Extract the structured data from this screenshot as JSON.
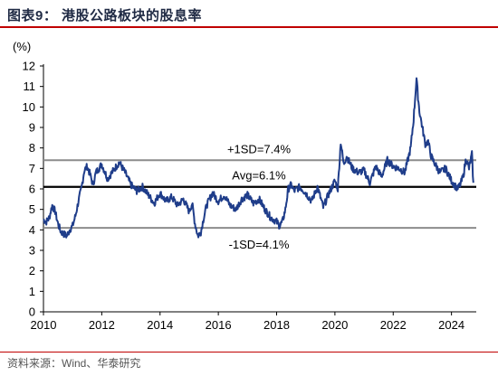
{
  "header": {
    "title": "图表9：  港股公路板块的股息率"
  },
  "footer": {
    "source": "资料来源：Wind、华泰研究"
  },
  "colors": {
    "series": "#1f3d8a",
    "avg_line": "#000000",
    "sd_line": "#8c8c8c",
    "rule": "#c00000"
  },
  "chart_data": {
    "type": "line",
    "title": "港股公路板块的股息率",
    "unit_label": "(%)",
    "xlim": [
      2010,
      2024.85
    ],
    "ylim": [
      0,
      12
    ],
    "x_ticks": [
      2010,
      2012,
      2014,
      2016,
      2018,
      2020,
      2022,
      2024
    ],
    "y_ticks": [
      0,
      1,
      2,
      3,
      4,
      5,
      6,
      7,
      8,
      9,
      10,
      11,
      12
    ],
    "grid": false,
    "reference_lines": [
      {
        "label": "+1SD=7.4%",
        "value": 7.4,
        "style": "sd"
      },
      {
        "label": "Avg=6.1%",
        "value": 6.1,
        "style": "avg"
      },
      {
        "label": "-1SD=4.1%",
        "value": 4.1,
        "style": "sd"
      }
    ],
    "series": [
      {
        "x": [
          2010.0,
          2010.1,
          2010.2,
          2010.3,
          2010.4,
          2010.5,
          2010.6,
          2010.7,
          2010.8,
          2010.9,
          2011.0,
          2011.1,
          2011.2,
          2011.3,
          2011.4,
          2011.5,
          2011.6,
          2011.7,
          2011.8,
          2011.9,
          2012.0,
          2012.2,
          2012.4,
          2012.6,
          2012.8,
          2013.0,
          2013.2,
          2013.4,
          2013.6,
          2013.8,
          2014.0,
          2014.2,
          2014.4,
          2014.6,
          2014.8,
          2015.0,
          2015.1,
          2015.2,
          2015.3,
          2015.4,
          2015.5,
          2015.6,
          2015.8,
          2016.0,
          2016.2,
          2016.4,
          2016.6,
          2016.8,
          2017.0,
          2017.2,
          2017.4,
          2017.6,
          2017.8,
          2018.0,
          2018.1,
          2018.2,
          2018.3,
          2018.4,
          2018.5,
          2018.6,
          2018.8,
          2019.0,
          2019.2,
          2019.4,
          2019.6,
          2019.8,
          2020.0,
          2020.1,
          2020.2,
          2020.3,
          2020.4,
          2020.6,
          2020.8,
          2021.0,
          2021.2,
          2021.4,
          2021.6,
          2021.8,
          2022.0,
          2022.2,
          2022.4,
          2022.6,
          2022.7,
          2022.8,
          2022.85,
          2022.9,
          2023.0,
          2023.1,
          2023.2,
          2023.3,
          2023.4,
          2023.6,
          2023.8,
          2024.0,
          2024.2,
          2024.3,
          2024.4,
          2024.5,
          2024.6,
          2024.7,
          2024.75
        ],
        "values": [
          4.5,
          4.4,
          4.6,
          5.2,
          4.9,
          4.3,
          3.9,
          3.8,
          3.7,
          4.0,
          4.2,
          4.7,
          5.4,
          6.0,
          6.9,
          7.1,
          6.7,
          6.2,
          6.8,
          7.0,
          7.2,
          6.5,
          6.9,
          7.3,
          6.8,
          6.2,
          5.9,
          6.1,
          5.7,
          5.3,
          5.8,
          5.4,
          5.6,
          5.2,
          5.5,
          4.9,
          5.3,
          4.3,
          3.7,
          3.9,
          4.6,
          5.2,
          5.8,
          5.4,
          5.7,
          5.2,
          5.0,
          5.5,
          5.7,
          5.3,
          5.5,
          5.0,
          4.6,
          4.4,
          4.2,
          4.4,
          5.0,
          6.0,
          6.2,
          5.9,
          6.1,
          5.8,
          5.4,
          6.1,
          5.1,
          5.8,
          6.4,
          6.0,
          8.3,
          7.2,
          7.6,
          7.0,
          6.8,
          6.9,
          6.3,
          7.1,
          6.6,
          7.4,
          7.1,
          7.0,
          6.8,
          8.0,
          9.4,
          11.4,
          10.5,
          9.8,
          9.0,
          8.2,
          8.3,
          7.6,
          7.3,
          6.8,
          7.0,
          6.4,
          6.0,
          6.2,
          6.6,
          7.5,
          7.0,
          7.7,
          6.3
        ]
      }
    ]
  }
}
